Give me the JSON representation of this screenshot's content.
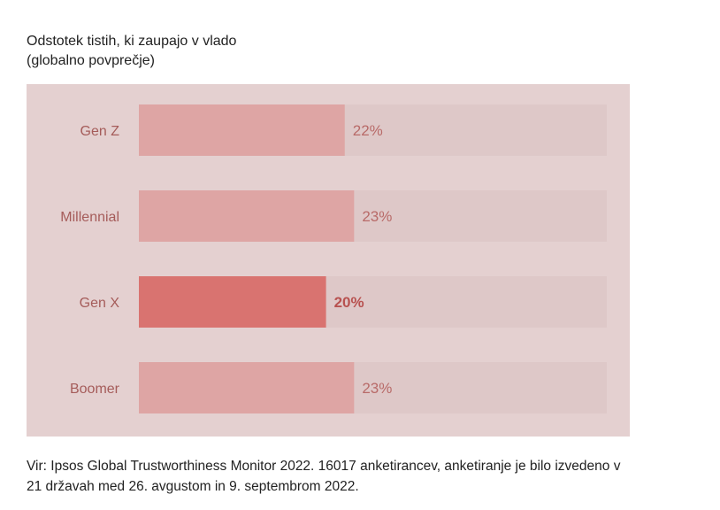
{
  "title": {
    "line1": "Odstotek tistih, ki zaupajo v vlado",
    "line2": "(globalno povprečje)"
  },
  "source": {
    "line1": "Vir: Ipsos Global Trustworthiness Monitor 2022. 16017 anketirancev, anketiranje je bilo izvedeno v",
    "line2": "21 državah med 26. avgustom in 9. septembrom 2022."
  },
  "chart_data": {
    "type": "bar",
    "orientation": "horizontal",
    "categories": [
      "Gen Z",
      "Millennial",
      "Gen X",
      "Boomer"
    ],
    "values": [
      22,
      23,
      20,
      23
    ],
    "value_labels": [
      "22%",
      "23%",
      "20%",
      "23%"
    ],
    "highlighted_category": "Gen X",
    "xlim": [
      0,
      50
    ],
    "grid": false,
    "legend": "none",
    "colors": {
      "panel_background": "#e4d0d0",
      "track": "#dec8c8",
      "bar": "#dea5a4",
      "bar_highlight": "#d97370",
      "label_text": "#a55c5a",
      "value_text": "#b86a68",
      "value_text_highlight": "#b85250"
    }
  }
}
